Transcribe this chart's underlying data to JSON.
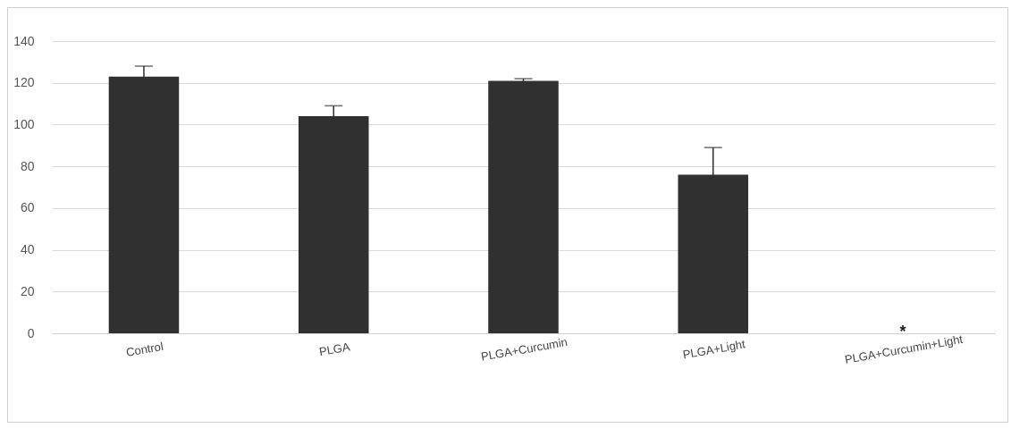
{
  "chart_data": {
    "type": "bar",
    "categories": [
      "Control",
      "PLGA",
      "PLGA+Curcumin",
      "PLGA+Light",
      "PLGA+Curcumin+Light"
    ],
    "values": [
      123,
      104,
      121,
      76,
      0
    ],
    "errors": [
      5,
      5,
      1,
      13,
      null
    ],
    "color": "#303030",
    "ylim": [
      0,
      140
    ],
    "yticks": [
      0,
      20,
      40,
      60,
      80,
      100,
      120,
      140
    ],
    "grid": "y",
    "annotations": [
      {
        "text": "*",
        "x": "PLGA+Curcumin+Light",
        "y": 0
      }
    ]
  }
}
